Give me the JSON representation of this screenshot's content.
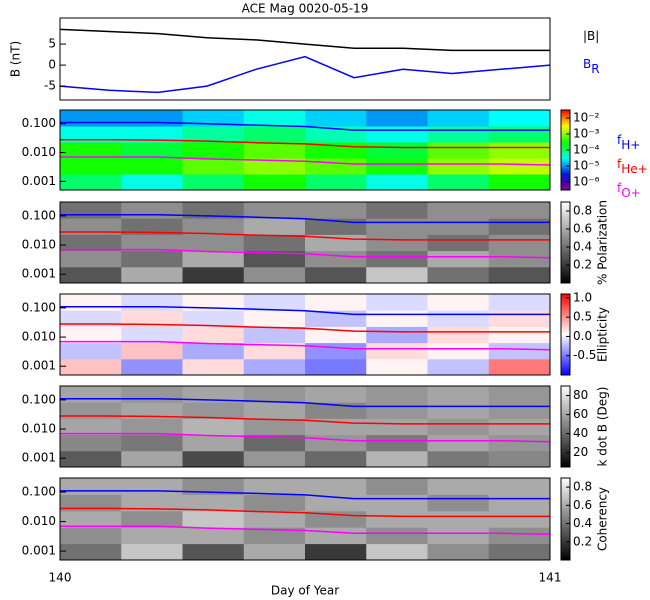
{
  "chart_data": [
    {
      "type": "line",
      "title": "ACE Mag 0020-05-19",
      "ylabel": "B (nT)",
      "x": [
        140,
        140.1,
        140.2,
        140.3,
        140.4,
        140.5,
        140.6,
        140.7,
        140.8,
        140.9,
        141
      ],
      "xlim": [
        140,
        141
      ],
      "ylim": [
        -8.3,
        11.2
      ],
      "yticks": [
        -5,
        0,
        5
      ],
      "series": [
        {
          "name": "|B|",
          "color": "#000000",
          "values": [
            8.5,
            8,
            7.5,
            6.5,
            6,
            5,
            4,
            4,
            3.5,
            3.5,
            3.5
          ]
        },
        {
          "name": "B",
          "subscript": "R",
          "color": "#0000ff",
          "values": [
            -5,
            -6,
            -6.5,
            -5,
            -1,
            2,
            -3,
            -1,
            -2,
            -1,
            0
          ]
        }
      ]
    },
    {
      "type": "spectrogram",
      "colormap": "rainbow",
      "log_y": true,
      "x": [
        140,
        140.1,
        140.2,
        140.3,
        140.4,
        140.5,
        140.6,
        140.7,
        140.8,
        140.9,
        141
      ],
      "xlim": [
        140,
        141
      ],
      "ylim": [
        0.0005,
        0.3
      ],
      "yticks": [
        0.001,
        {
          "value": 0.01,
          "label": "0.010"
        },
        {
          "value": 0.1,
          "label": "0.100"
        }
      ],
      "zlim": [
        -6.5,
        -1.5
      ],
      "zticks": [
        {
          "value": -2,
          "label": "10⁻²"
        },
        {
          "value": -3,
          "label": "10⁻³"
        },
        {
          "value": -4,
          "label": "10⁻⁴"
        },
        {
          "value": -5,
          "label": "10⁻⁵"
        },
        {
          "value": -6,
          "label": "10⁻⁶"
        }
      ],
      "z": [
        [
          -4,
          -4.5,
          -4,
          -3.5,
          -4,
          -4.5,
          -4,
          -3.5
        ],
        [
          -3.5,
          -3.5,
          -3.2,
          -3,
          -3.2,
          -3.5,
          -3,
          -2.8
        ],
        [
          -3.5,
          -3.8,
          -3.5,
          -3.2,
          -3.5,
          -3.8,
          -3.2,
          -3
        ],
        [
          -4.5,
          -4.5,
          -4.2,
          -4,
          -4.3,
          -4.5,
          -4.2,
          -4
        ],
        [
          -5,
          -5,
          -4.8,
          -4.5,
          -4.8,
          -5,
          -4.8,
          -4.6
        ]
      ],
      "series": [
        {
          "name": "f",
          "subscript": "H+",
          "color": "#0000ff",
          "values": [
            0.11,
            0.11,
            0.11,
            0.1,
            0.09,
            0.08,
            0.06,
            0.06,
            0.06,
            0.06,
            0.06
          ]
        },
        {
          "name": "f",
          "subscript": "He+",
          "color": "#ff0000",
          "values": [
            0.028,
            0.028,
            0.027,
            0.025,
            0.022,
            0.02,
            0.016,
            0.015,
            0.015,
            0.015,
            0.015
          ]
        },
        {
          "name": "f",
          "subscript": "O+",
          "color": "#ff00ff",
          "values": [
            0.007,
            0.007,
            0.007,
            0.006,
            0.0055,
            0.005,
            0.004,
            0.004,
            0.004,
            0.004,
            0.0037
          ]
        }
      ]
    },
    {
      "type": "spectrogram",
      "colormap": "gray",
      "log_y": true,
      "zlabel": "% Polarization",
      "x": [
        140,
        140.1,
        140.2,
        140.3,
        140.4,
        140.5,
        140.6,
        140.7,
        140.8,
        140.9,
        141
      ],
      "xlim": [
        140,
        141
      ],
      "ylim": [
        0.0005,
        0.3
      ],
      "yticks": [
        0.001,
        {
          "value": 0.01,
          "label": "0.010"
        },
        {
          "value": 0.1,
          "label": "0.100"
        }
      ],
      "zlim": [
        0,
        0.9
      ],
      "zticks": [
        0.2,
        0.4,
        0.6,
        0.8
      ],
      "z": [
        [
          0.3,
          0.6,
          0.2,
          0.5,
          0.3,
          0.7,
          0.4,
          0.3
        ],
        [
          0.5,
          0.4,
          0.6,
          0.3,
          0.5,
          0.4,
          0.6,
          0.5
        ],
        [
          0.4,
          0.5,
          0.5,
          0.4,
          0.6,
          0.5,
          0.4,
          0.5
        ],
        [
          0.5,
          0.4,
          0.5,
          0.6,
          0.4,
          0.5,
          0.5,
          0.4
        ],
        [
          0.4,
          0.5,
          0.4,
          0.5,
          0.5,
          0.4,
          0.5,
          0.5
        ]
      ],
      "series": [
        {
          "color": "#0000ff",
          "values": [
            0.11,
            0.11,
            0.11,
            0.1,
            0.09,
            0.08,
            0.06,
            0.06,
            0.06,
            0.06,
            0.06
          ]
        },
        {
          "color": "#ff0000",
          "values": [
            0.028,
            0.028,
            0.027,
            0.025,
            0.022,
            0.02,
            0.016,
            0.015,
            0.015,
            0.015,
            0.015
          ]
        },
        {
          "color": "#ff00ff",
          "values": [
            0.007,
            0.007,
            0.007,
            0.006,
            0.0055,
            0.005,
            0.004,
            0.004,
            0.004,
            0.004,
            0.0037
          ]
        }
      ]
    },
    {
      "type": "spectrogram",
      "colormap": "bwr",
      "log_y": true,
      "zlabel": "Ellipticity",
      "x": [
        140,
        140.1,
        140.2,
        140.3,
        140.4,
        140.5,
        140.6,
        140.7,
        140.8,
        140.9,
        141
      ],
      "xlim": [
        140,
        141
      ],
      "ylim": [
        0.0005,
        0.3
      ],
      "yticks": [
        0.001,
        {
          "value": 0.01,
          "label": "0.010"
        },
        {
          "value": 0.1,
          "label": "0.100"
        }
      ],
      "zlim": [
        -1,
        1.1
      ],
      "zticks": [
        -0.5,
        {
          "value": 0,
          "label": "0.0"
        },
        0.5,
        {
          "value": 1,
          "label": "1.0"
        }
      ],
      "z": [
        [
          0.3,
          -0.4,
          0.2,
          -0.3,
          -0.5,
          0.1,
          -0.2,
          0.6
        ],
        [
          -0.2,
          0.3,
          -0.3,
          0.2,
          -0.4,
          0.2,
          0.1,
          -0.2
        ],
        [
          0.1,
          -0.1,
          0.2,
          -0.2,
          0.1,
          -0.3,
          0.2,
          0.1
        ],
        [
          -0.1,
          0.2,
          -0.1,
          0.1,
          -0.2,
          0.1,
          -0.1,
          0.2
        ],
        [
          0.1,
          -0.1,
          0.1,
          -0.1,
          0.1,
          -0.1,
          0.1,
          -0.1
        ]
      ],
      "series": [
        {
          "color": "#0000ff",
          "values": [
            0.11,
            0.11,
            0.11,
            0.1,
            0.09,
            0.08,
            0.06,
            0.06,
            0.06,
            0.06,
            0.06
          ]
        },
        {
          "color": "#ff0000",
          "values": [
            0.028,
            0.028,
            0.027,
            0.025,
            0.022,
            0.02,
            0.016,
            0.015,
            0.015,
            0.015,
            0.015
          ]
        },
        {
          "color": "#ff00ff",
          "values": [
            0.007,
            0.007,
            0.007,
            0.006,
            0.0055,
            0.005,
            0.004,
            0.004,
            0.004,
            0.004,
            0.0037
          ]
        }
      ]
    },
    {
      "type": "spectrogram",
      "colormap": "gray",
      "log_y": true,
      "zlabel": "k dot B (Deg)",
      "x": [
        140,
        140.1,
        140.2,
        140.3,
        140.4,
        140.5,
        140.6,
        140.7,
        140.8,
        140.9,
        141
      ],
      "xlim": [
        140,
        141
      ],
      "ylim": [
        0.0005,
        0.3
      ],
      "yticks": [
        0.001,
        {
          "value": 0.01,
          "label": "0.010"
        },
        {
          "value": 0.1,
          "label": "0.100"
        }
      ],
      "zlim": [
        5,
        90
      ],
      "zticks": [
        20,
        40,
        60,
        80
      ],
      "z": [
        [
          35,
          60,
          30,
          55,
          40,
          65,
          45,
          50
        ],
        [
          50,
          45,
          60,
          40,
          55,
          45,
          60,
          55
        ],
        [
          60,
          55,
          65,
          55,
          60,
          60,
          55,
          60
        ],
        [
          55,
          60,
          55,
          60,
          50,
          55,
          60,
          55
        ],
        [
          60,
          55,
          60,
          55,
          60,
          55,
          60,
          55
        ]
      ],
      "series": [
        {
          "color": "#0000ff",
          "values": [
            0.11,
            0.11,
            0.11,
            0.1,
            0.09,
            0.08,
            0.06,
            0.06,
            0.06,
            0.06,
            0.06
          ]
        },
        {
          "color": "#ff0000",
          "values": [
            0.028,
            0.028,
            0.027,
            0.025,
            0.022,
            0.02,
            0.016,
            0.015,
            0.015,
            0.015,
            0.015
          ]
        },
        {
          "color": "#ff00ff",
          "values": [
            0.007,
            0.007,
            0.007,
            0.006,
            0.0055,
            0.005,
            0.004,
            0.004,
            0.004,
            0.004,
            0.0037
          ]
        }
      ]
    },
    {
      "type": "spectrogram",
      "colormap": "gray",
      "log_y": true,
      "zlabel": "Coherency",
      "x": [
        140,
        140.1,
        140.2,
        140.3,
        140.4,
        140.5,
        140.6,
        140.7,
        140.8,
        140.9,
        141
      ],
      "xlim": [
        140,
        141
      ],
      "ylim": [
        0.0005,
        0.3
      ],
      "yticks": [
        0.001,
        {
          "value": 0.01,
          "label": "0.010"
        },
        {
          "value": 0.1,
          "label": "0.100"
        }
      ],
      "zlim": [
        0,
        0.9
      ],
      "zticks": [
        0.2,
        0.4,
        0.6,
        0.8
      ],
      "xticks": [
        140,
        141
      ],
      "xlabel": "Day of Year",
      "z": [
        [
          0.4,
          0.7,
          0.3,
          0.6,
          0.2,
          0.7,
          0.5,
          0.4
        ],
        [
          0.5,
          0.6,
          0.6,
          0.5,
          0.6,
          0.5,
          0.6,
          0.5
        ],
        [
          0.6,
          0.5,
          0.7,
          0.6,
          0.5,
          0.6,
          0.6,
          0.6
        ],
        [
          0.5,
          0.6,
          0.6,
          0.5,
          0.6,
          0.6,
          0.5,
          0.6
        ],
        [
          0.6,
          0.6,
          0.5,
          0.6,
          0.6,
          0.5,
          0.6,
          0.6
        ]
      ],
      "series": [
        {
          "color": "#0000ff",
          "values": [
            0.11,
            0.11,
            0.11,
            0.1,
            0.09,
            0.08,
            0.06,
            0.06,
            0.06,
            0.06,
            0.06
          ]
        },
        {
          "color": "#ff0000",
          "values": [
            0.028,
            0.028,
            0.027,
            0.025,
            0.022,
            0.02,
            0.016,
            0.015,
            0.015,
            0.015,
            0.015
          ]
        },
        {
          "color": "#ff00ff",
          "values": [
            0.007,
            0.007,
            0.007,
            0.006,
            0.0055,
            0.005,
            0.004,
            0.004,
            0.004,
            0.004,
            0.0037
          ]
        }
      ]
    }
  ]
}
